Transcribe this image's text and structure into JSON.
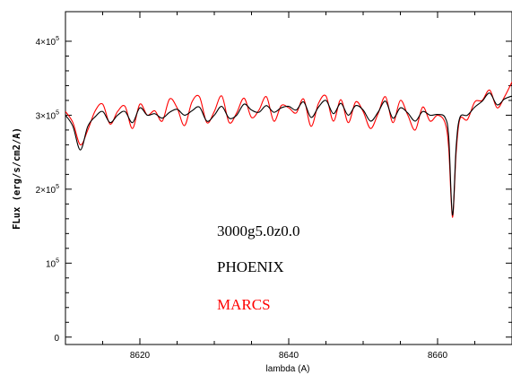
{
  "chart_data": {
    "type": "line",
    "title": "",
    "xlabel": "lambda (A)",
    "ylabel": "FLux (erg/s/cm2/A)",
    "xlim": [
      8610,
      8670
    ],
    "ylim": [
      -10000,
      440000
    ],
    "x_ticks": [
      {
        "value": 8620,
        "label": "8620"
      },
      {
        "value": 8640,
        "label": "8640"
      },
      {
        "value": 8660,
        "label": "8660"
      }
    ],
    "y_ticks": [
      {
        "value": 0,
        "mant": "0",
        "exp": ""
      },
      {
        "value": 100000,
        "mant": "10",
        "exp": "5"
      },
      {
        "value": 200000,
        "mant": "2×10",
        "exp": "5"
      },
      {
        "value": 300000,
        "mant": "3×10",
        "exp": "5"
      },
      {
        "value": 400000,
        "mant": "4×10",
        "exp": "5"
      }
    ],
    "annotations": [
      {
        "text": "3000g5.0z0.0",
        "color": "#000000"
      },
      {
        "text": "PHOENIX",
        "color": "#000000"
      },
      {
        "text": "MARCS",
        "color": "#ff0000"
      }
    ],
    "series": [
      {
        "name": "PHOENIX",
        "color": "#000000",
        "x": [
          8610,
          8611,
          8612,
          8613,
          8614,
          8615,
          8616,
          8617,
          8618,
          8619,
          8620,
          8621,
          8622,
          8623,
          8624,
          8625,
          8626,
          8627,
          8628,
          8629,
          8630,
          8631,
          8632,
          8633,
          8634,
          8635,
          8636,
          8637,
          8638,
          8639,
          8640,
          8641,
          8642,
          8643,
          8644,
          8645,
          8646,
          8647,
          8648,
          8649,
          8650,
          8651,
          8652,
          8653,
          8654,
          8655,
          8656,
          8657,
          8658,
          8659,
          8660,
          8661,
          8661.5,
          8662,
          8662.5,
          8663,
          8664,
          8665,
          8666,
          8667,
          8668,
          8669,
          8670
        ],
        "y": [
          300000,
          285000,
          253000,
          285000,
          298000,
          305000,
          290000,
          300000,
          305000,
          290000,
          310000,
          300000,
          302000,
          296000,
          304000,
          308000,
          300000,
          306000,
          311000,
          292000,
          300000,
          312000,
          296000,
          300000,
          315000,
          307000,
          304000,
          313000,
          304000,
          310000,
          312000,
          307000,
          318000,
          297000,
          311000,
          320000,
          302000,
          316000,
          300000,
          313000,
          307000,
          292000,
          304000,
          319000,
          296000,
          310000,
          303000,
          292000,
          305000,
          300000,
          301000,
          297000,
          270000,
          165000,
          258000,
          297000,
          300000,
          311000,
          319000,
          330000,
          314000,
          322000,
          326000
        ]
      },
      {
        "name": "MARCS",
        "color": "#ff0000",
        "x": [
          8610,
          8611,
          8612,
          8613,
          8614,
          8615,
          8616,
          8617,
          8618,
          8619,
          8620,
          8621,
          8622,
          8623,
          8624,
          8625,
          8626,
          8627,
          8628,
          8629,
          8630,
          8631,
          8632,
          8633,
          8634,
          8635,
          8636,
          8637,
          8638,
          8639,
          8640,
          8641,
          8642,
          8643,
          8644,
          8645,
          8646,
          8647,
          8648,
          8649,
          8650,
          8651,
          8652,
          8653,
          8654,
          8655,
          8656,
          8657,
          8658,
          8659,
          8660,
          8661,
          8661.5,
          8662,
          8662.5,
          8663,
          8664,
          8665,
          8666,
          8667,
          8668,
          8669,
          8670
        ],
        "y": [
          305000,
          290000,
          260000,
          280000,
          306000,
          315000,
          288000,
          305000,
          312000,
          282000,
          315000,
          300000,
          306000,
          292000,
          322000,
          310000,
          286000,
          318000,
          325000,
          290000,
          305000,
          326000,
          290000,
          303000,
          323000,
          297000,
          307000,
          325000,
          292000,
          313000,
          310000,
          303000,
          322000,
          285000,
          316000,
          326000,
          292000,
          321000,
          290000,
          318000,
          305000,
          282000,
          302000,
          325000,
          290000,
          320000,
          300000,
          280000,
          311000,
          292000,
          300000,
          290000,
          255000,
          162000,
          250000,
          295000,
          294000,
          318000,
          320000,
          334000,
          310000,
          325000,
          345000
        ]
      }
    ]
  }
}
